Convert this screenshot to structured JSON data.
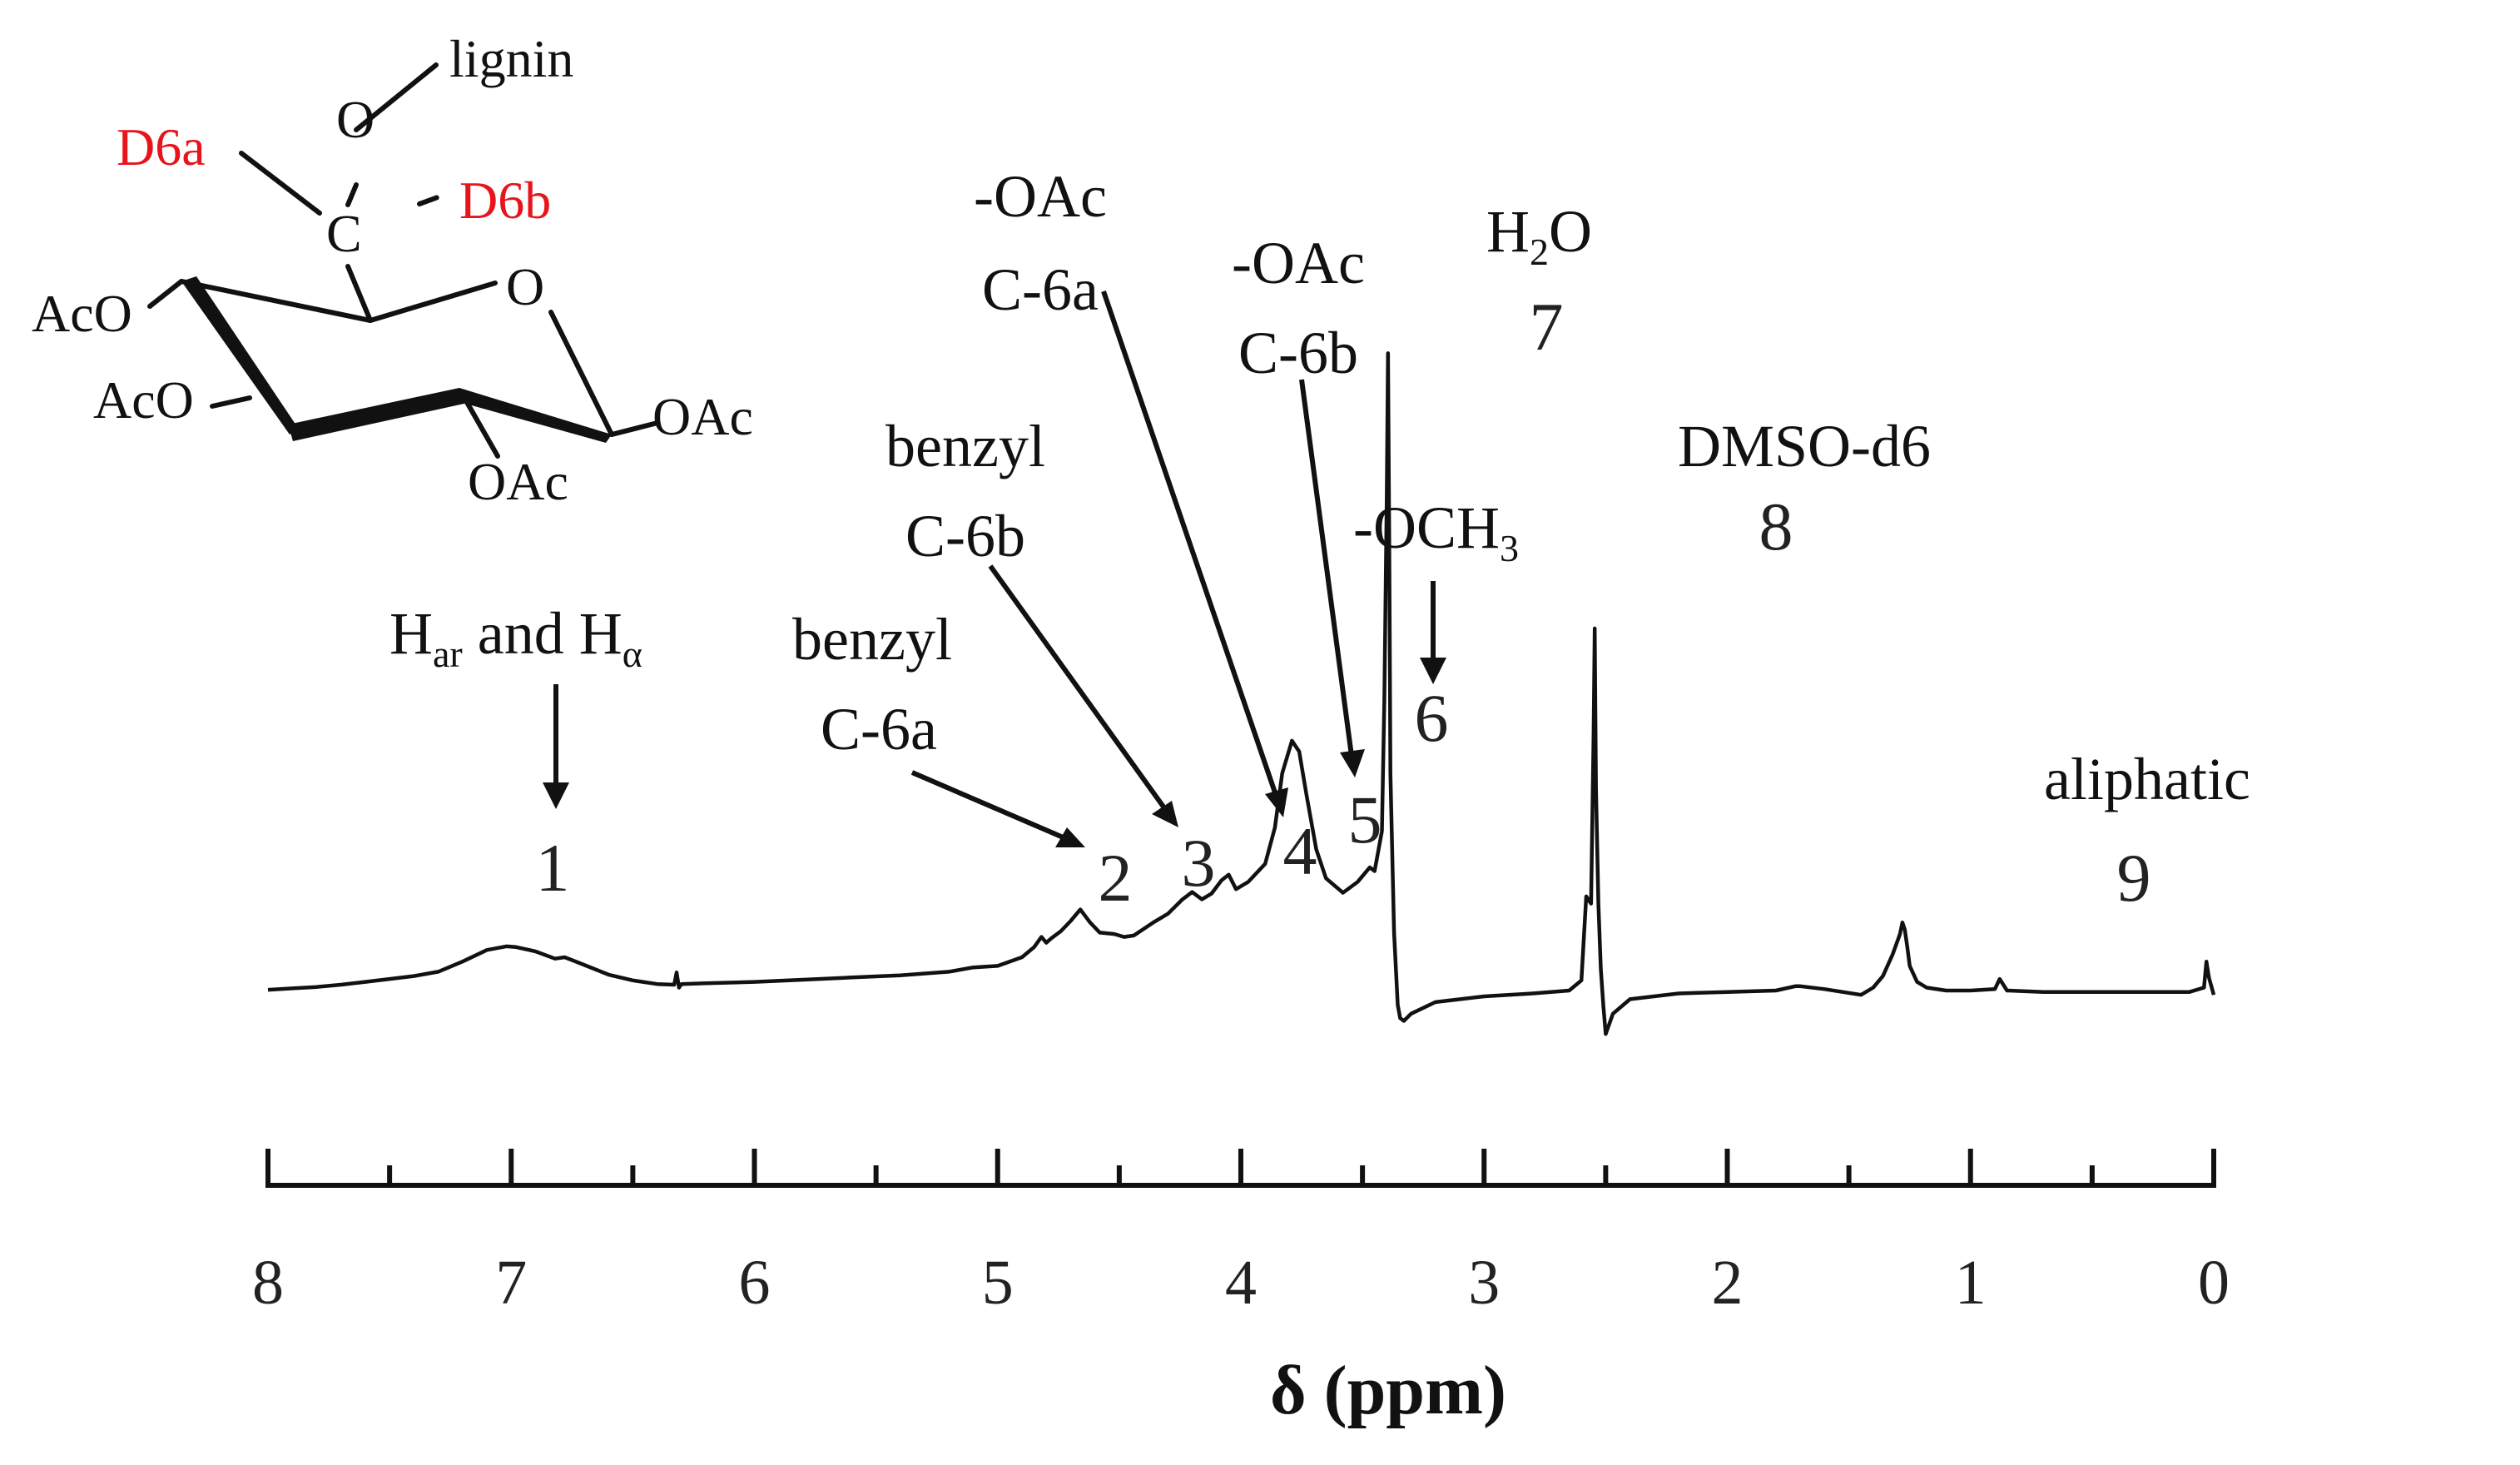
{
  "chart_data": {
    "type": "line",
    "xlabel": "δ (ppm)",
    "xlim": [
      8,
      0
    ],
    "x_ticks": [
      "8",
      "7",
      "6",
      "5",
      "4",
      "3",
      "2",
      "1",
      "0"
    ],
    "reversed_x_axis": true,
    "series": [
      {
        "x": [
          8.0,
          7.9,
          7.8,
          7.7,
          7.6,
          7.5,
          7.4,
          7.3,
          7.2,
          7.1,
          7.02,
          6.98,
          6.9,
          6.82,
          6.78,
          6.72,
          6.6,
          6.5,
          6.4,
          6.33,
          6.32,
          6.31,
          6.3,
          6.2,
          6.0,
          5.8,
          5.6,
          5.4,
          5.2,
          5.1,
          5.0,
          4.9,
          4.85,
          4.82,
          4.8,
          4.78,
          4.74,
          4.7,
          4.66,
          4.62,
          4.58,
          4.52,
          4.48,
          4.44,
          4.36,
          4.3,
          4.24,
          4.2,
          4.16,
          4.12,
          4.08,
          4.05,
          4.02,
          3.97,
          3.9,
          3.86,
          3.83,
          3.79,
          3.76,
          3.73,
          3.69,
          3.65,
          3.58,
          3.52,
          3.47,
          3.45,
          3.42,
          3.41,
          3.4,
          3.395,
          3.39,
          3.385,
          3.37,
          3.355,
          3.345,
          3.33,
          3.3,
          3.2,
          3.0,
          2.8,
          2.65,
          2.6,
          2.58,
          2.56,
          2.55,
          2.545,
          2.54,
          2.53,
          2.52,
          2.51,
          2.5,
          2.47,
          2.4,
          2.2,
          2.0,
          1.8,
          1.72,
          1.7,
          1.6,
          1.45,
          1.4,
          1.36,
          1.32,
          1.29,
          1.28,
          1.27,
          1.26,
          1.25,
          1.22,
          1.18,
          1.1,
          1.0,
          0.9,
          0.88,
          0.85,
          0.7,
          0.5,
          0.3,
          0.1,
          0.04,
          0.03,
          0.02,
          0.0
        ],
        "y": [
          0.1,
          0.3,
          0.5,
          0.8,
          1.2,
          1.6,
          2.0,
          2.6,
          4.0,
          5.6,
          6.1,
          6.0,
          5.4,
          4.4,
          4.6,
          3.8,
          2.2,
          1.4,
          0.9,
          0.8,
          2.5,
          0.4,
          0.9,
          1.0,
          1.2,
          1.5,
          1.8,
          2.1,
          2.6,
          3.2,
          3.4,
          4.6,
          6.0,
          7.4,
          6.6,
          7.2,
          8.2,
          9.6,
          11.2,
          9.4,
          8.0,
          7.8,
          7.4,
          7.6,
          9.4,
          10.6,
          12.6,
          13.6,
          12.6,
          13.4,
          15.2,
          16.0,
          14.0,
          15.0,
          17.5,
          22.5,
          30.0,
          34.5,
          33.0,
          27.0,
          19.5,
          15.5,
          13.5,
          15.0,
          17.0,
          16.5,
          22.0,
          40.0,
          68.0,
          88.0,
          62.0,
          30.0,
          8.0,
          -2.0,
          -3.8,
          -4.2,
          -3.2,
          -1.6,
          -0.8,
          -0.4,
          0.0,
          1.4,
          13.0,
          12.0,
          35.0,
          50.0,
          28.0,
          12.0,
          3.0,
          -2.0,
          -6.0,
          -3.2,
          -1.2,
          -0.4,
          -0.2,
          0.0,
          0.6,
          0.6,
          0.2,
          -0.6,
          0.4,
          2.0,
          5.0,
          7.8,
          9.4,
          8.4,
          6.0,
          3.4,
          1.2,
          0.4,
          0.0,
          0.0,
          0.2,
          1.6,
          0.0,
          -0.2,
          -0.2,
          -0.2,
          -0.2,
          0.4,
          4.0,
          1.8,
          -0.6
        ]
      }
    ],
    "annotations": [
      {
        "number": "1",
        "label": "H",
        "label_sub": "ar",
        "label_mid": " and H",
        "label_sub2": "α",
        "ppm": 7.0
      },
      {
        "number": "2",
        "label": "benzyl",
        "label2": "C-6a",
        "ppm": 5.0
      },
      {
        "number": "3",
        "label": "benzyl",
        "label2": "C-6b",
        "ppm": 4.7
      },
      {
        "number": "4",
        "label": "-OAc",
        "label2": "C-6a",
        "ppm": 4.36
      },
      {
        "number": "5",
        "label": "-OAc",
        "label2": "C-6b",
        "ppm": 4.05
      },
      {
        "number": "6",
        "label": "-OCH",
        "label_sub": "3",
        "ppm": 3.78
      },
      {
        "number": "7",
        "label": "H",
        "label_sub": "2",
        "label_end": "O",
        "ppm": 3.4
      },
      {
        "number": "8",
        "label": "DMSO-d6",
        "ppm": 2.53
      },
      {
        "number": "9",
        "label": "aliphatic",
        "ppm": 1.27
      }
    ],
    "grid": false,
    "legend": "none"
  },
  "structure": {
    "lignin": "lignin",
    "o_top": "O",
    "c_center": "C",
    "d6a": "D6a",
    "d6b": "D6b",
    "o_ring": "O",
    "aco_upper": "AcO",
    "aco_lower": "AcO",
    "oac_right": "OAc",
    "oac_bottom": "OAc",
    "highlight_color": "#e8141b",
    "line_color": "#111111"
  }
}
